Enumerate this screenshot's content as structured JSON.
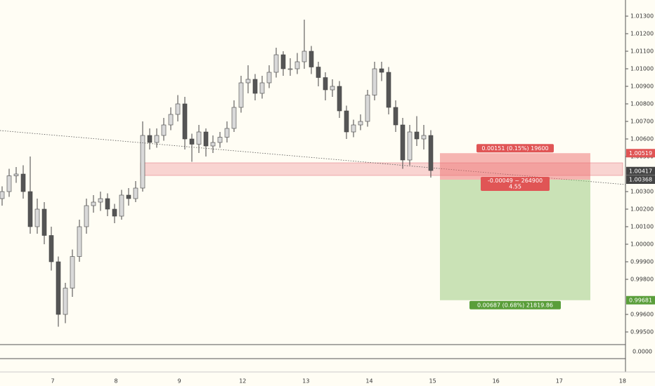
{
  "chart_data": {
    "type": "candlestick",
    "ylim": [
      0.99428,
      1.01392
    ],
    "yticks": [
      {
        "value": 1.013,
        "label": "1.01300"
      },
      {
        "value": 1.012,
        "label": "1.01200"
      },
      {
        "value": 1.011,
        "label": "1.01100"
      },
      {
        "value": 1.01,
        "label": "1.01000"
      },
      {
        "value": 1.009,
        "label": "1.00900"
      },
      {
        "value": 1.008,
        "label": "1.00800"
      },
      {
        "value": 1.007,
        "label": "1.00700"
      },
      {
        "value": 1.006,
        "label": "1.00600"
      },
      {
        "value": 1.005,
        "label": "1.00500"
      },
      {
        "value": 1.003,
        "label": "1.00300"
      },
      {
        "value": 1.002,
        "label": "1.00200"
      },
      {
        "value": 1.001,
        "label": "1.00100"
      },
      {
        "value": 1.0,
        "label": "1.00000"
      },
      {
        "value": 0.999,
        "label": "0.99900"
      },
      {
        "value": 0.998,
        "label": "0.99800"
      },
      {
        "value": 0.996,
        "label": "0.99600"
      },
      {
        "value": 0.995,
        "label": "0.99500"
      }
    ],
    "x_labels": [
      "7",
      "8",
      "9",
      "12",
      "13",
      "14",
      "15",
      "16",
      "17",
      "18"
    ],
    "up_color": "#d9d9d9",
    "down_color": "#555555",
    "candles": [
      [
        1.0026,
        1.0033,
        1.0022,
        1.003
      ],
      [
        1.003,
        1.0043,
        1.0027,
        1.0039
      ],
      [
        1.0039,
        1.0044,
        1.0035,
        1.004
      ],
      [
        1.004,
        1.0045,
        1.0026,
        1.003
      ],
      [
        1.003,
        1.005,
        1.0006,
        1.001
      ],
      [
        1.001,
        1.0026,
        1.0006,
        1.002
      ],
      [
        1.002,
        1.0024,
        1.0,
        1.0005
      ],
      [
        1.0005,
        1.001,
        0.9985,
        0.999
      ],
      [
        0.999,
        0.9993,
        0.9953,
        0.996
      ],
      [
        0.996,
        0.9978,
        0.9955,
        0.9975
      ],
      [
        0.9975,
        0.9997,
        0.997,
        0.9993
      ],
      [
        0.9993,
        1.0014,
        0.999,
        1.001
      ],
      [
        1.001,
        1.0026,
        1.0006,
        1.0022
      ],
      [
        1.0022,
        1.0028,
        1.0018,
        1.0024
      ],
      [
        1.0024,
        1.003,
        1.0019,
        1.0026
      ],
      [
        1.0026,
        1.0029,
        1.0016,
        1.002
      ],
      [
        1.002,
        1.0023,
        1.0012,
        1.0016
      ],
      [
        1.0016,
        1.0031,
        1.0014,
        1.0028
      ],
      [
        1.0028,
        1.0032,
        1.0022,
        1.0026
      ],
      [
        1.0026,
        1.0036,
        1.0024,
        1.0032
      ],
      [
        1.0032,
        1.007,
        1.003,
        1.0062
      ],
      [
        1.0062,
        1.0066,
        1.0054,
        1.0058
      ],
      [
        1.0058,
        1.0066,
        1.0055,
        1.0062
      ],
      [
        1.0062,
        1.0072,
        1.0059,
        1.0068
      ],
      [
        1.0068,
        1.0078,
        1.0065,
        1.0074
      ],
      [
        1.0074,
        1.0085,
        1.007,
        1.008
      ],
      [
        1.008,
        1.0084,
        1.0054,
        1.006
      ],
      [
        1.006,
        1.0063,
        1.0047,
        1.0057
      ],
      [
        1.0057,
        1.0068,
        1.0052,
        1.0064
      ],
      [
        1.0064,
        1.0066,
        1.005,
        1.0056
      ],
      [
        1.0056,
        1.0062,
        1.0052,
        1.0058
      ],
      [
        1.0058,
        1.0064,
        1.0055,
        1.0061
      ],
      [
        1.0061,
        1.007,
        1.0058,
        1.0066
      ],
      [
        1.0066,
        1.0082,
        1.0064,
        1.0078
      ],
      [
        1.0078,
        1.0096,
        1.0075,
        1.0092
      ],
      [
        1.0092,
        1.0102,
        1.0086,
        1.0094
      ],
      [
        1.0094,
        1.0097,
        1.0082,
        1.0086
      ],
      [
        1.0086,
        1.0096,
        1.0083,
        1.0092
      ],
      [
        1.0092,
        1.0102,
        1.0089,
        1.0098
      ],
      [
        1.0098,
        1.0112,
        1.0095,
        1.0108
      ],
      [
        1.0108,
        1.011,
        1.0096,
        1.01
      ],
      [
        1.01,
        1.0106,
        1.0096,
        1.01
      ],
      [
        1.01,
        1.0109,
        1.0097,
        1.0104
      ],
      [
        1.0104,
        1.0128,
        1.01,
        1.011
      ],
      [
        1.011,
        1.0113,
        1.0097,
        1.0101
      ],
      [
        1.0101,
        1.0104,
        1.009,
        1.0095
      ],
      [
        1.0095,
        1.0098,
        1.0082,
        1.0088
      ],
      [
        1.0088,
        1.0094,
        1.0084,
        1.009
      ],
      [
        1.009,
        1.0093,
        1.0072,
        1.0076
      ],
      [
        1.0076,
        1.0079,
        1.006,
        1.0064
      ],
      [
        1.0064,
        1.0071,
        1.0061,
        1.0068
      ],
      [
        1.0068,
        1.0074,
        1.0065,
        1.007
      ],
      [
        1.007,
        1.0088,
        1.0067,
        1.0085
      ],
      [
        1.0085,
        1.0104,
        1.0082,
        1.01
      ],
      [
        1.01,
        1.0104,
        1.0093,
        1.0098
      ],
      [
        1.0098,
        1.0101,
        1.0074,
        1.0078
      ],
      [
        1.0078,
        1.0082,
        1.0064,
        1.0068
      ],
      [
        1.0068,
        1.0072,
        1.0043,
        1.0048
      ],
      [
        1.0048,
        1.0068,
        1.0045,
        1.0064
      ],
      [
        1.0064,
        1.0073,
        1.0056,
        1.006
      ],
      [
        1.006,
        1.0068,
        1.0054,
        1.0062
      ],
      [
        1.0062,
        1.0065,
        1.0038,
        1.0042
      ]
    ],
    "trendline": [
      1.00648,
      1.0034
    ],
    "zone": [
      1.00392,
      1.00464
    ],
    "last_price": 1.00417,
    "position": {
      "entry": 1.00368,
      "stop": 1.00519,
      "target": 0.99681,
      "stop_label": "0.00151 (0.15%) 19600",
      "pnl_label": "-0.00049 ~ 264900",
      "ratio_label": "4.55",
      "target_label": "0.00687 (0.68%) 21819.86"
    },
    "indicator_yticks": [
      {
        "value": 0,
        "label": "0.0000"
      }
    ]
  }
}
